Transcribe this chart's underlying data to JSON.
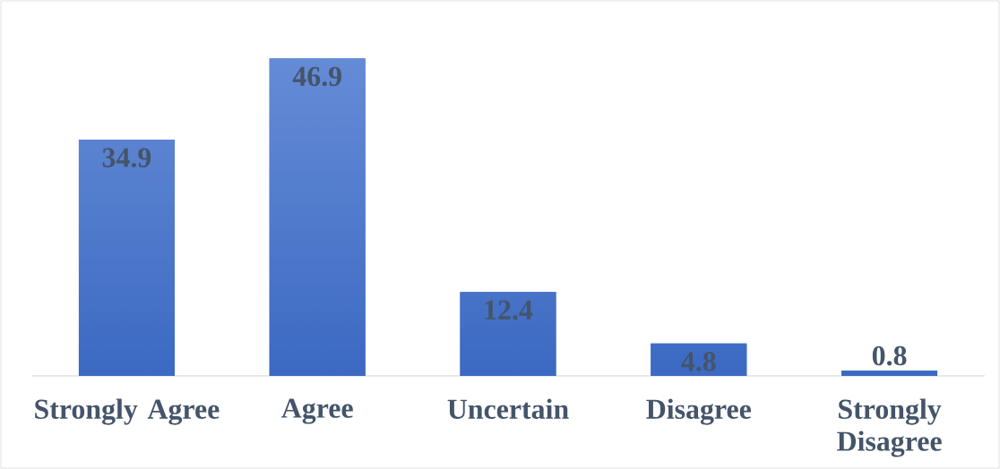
{
  "chart_data": {
    "type": "bar",
    "categories": [
      "Strongly Agree",
      "Agree",
      "Uncertain",
      "Disagree",
      "Strongly Disagree"
    ],
    "values": [
      34.9,
      46.9,
      12.4,
      4.8,
      0.8
    ],
    "color": "#3f6fcc",
    "data_labels": true
  }
}
